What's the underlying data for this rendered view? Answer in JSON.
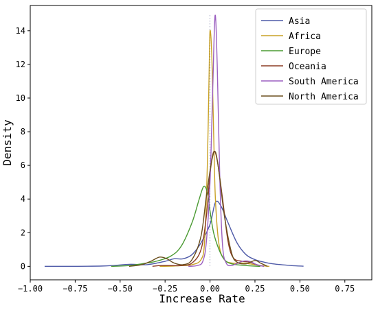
{
  "chart_data": {
    "type": "line",
    "title": "",
    "xlabel": "Increase Rate",
    "ylabel": "Density",
    "xlim": [
      -1.0,
      0.9
    ],
    "ylim": [
      -0.8,
      15.5
    ],
    "x_ticks": [
      -1.0,
      -0.75,
      -0.5,
      -0.25,
      0.0,
      0.25,
      0.5,
      0.75
    ],
    "x_tick_labels": [
      "−1.00",
      "−0.75",
      "−0.50",
      "−0.25",
      "0.00",
      "0.25",
      "0.50",
      "0.75"
    ],
    "y_ticks": [
      0,
      2,
      4,
      6,
      8,
      10,
      12,
      14
    ],
    "y_tick_labels": [
      "0",
      "2",
      "4",
      "6",
      "8",
      "10",
      "12",
      "14"
    ],
    "grid": false,
    "legend_position": "top-right",
    "reference_line": {
      "x": 0.0,
      "style": "dotted"
    },
    "series": [
      {
        "name": "Asia",
        "color": "#4f5ba8",
        "points": [
          [
            -0.92,
            0.0
          ],
          [
            -0.6,
            0.02
          ],
          [
            -0.45,
            0.12
          ],
          [
            -0.35,
            0.1
          ],
          [
            -0.25,
            0.3
          ],
          [
            -0.2,
            0.45
          ],
          [
            -0.15,
            0.45
          ],
          [
            -0.1,
            0.7
          ],
          [
            -0.05,
            1.4
          ],
          [
            0.0,
            2.5
          ],
          [
            0.03,
            3.8
          ],
          [
            0.06,
            3.6
          ],
          [
            0.1,
            2.6
          ],
          [
            0.15,
            1.4
          ],
          [
            0.2,
            0.7
          ],
          [
            0.25,
            0.4
          ],
          [
            0.3,
            0.25
          ],
          [
            0.35,
            0.15
          ],
          [
            0.45,
            0.05
          ],
          [
            0.52,
            0.01
          ]
        ]
      },
      {
        "name": "Africa",
        "color": "#c9a227",
        "points": [
          [
            -0.28,
            0.0
          ],
          [
            -0.2,
            0.02
          ],
          [
            -0.15,
            0.05
          ],
          [
            -0.1,
            0.1
          ],
          [
            -0.05,
            0.4
          ],
          [
            -0.03,
            1.5
          ],
          [
            -0.015,
            6.0
          ],
          [
            -0.005,
            11.5
          ],
          [
            0.0,
            14.0
          ],
          [
            0.01,
            12.5
          ],
          [
            0.02,
            8.0
          ],
          [
            0.03,
            4.0
          ],
          [
            0.05,
            1.3
          ],
          [
            0.08,
            0.4
          ],
          [
            0.12,
            0.2
          ],
          [
            0.18,
            0.2
          ],
          [
            0.22,
            0.15
          ],
          [
            0.28,
            0.05
          ],
          [
            0.33,
            0.0
          ]
        ]
      },
      {
        "name": "Europe",
        "color": "#4a9a32",
        "points": [
          [
            -0.55,
            0.0
          ],
          [
            -0.45,
            0.05
          ],
          [
            -0.38,
            0.15
          ],
          [
            -0.3,
            0.3
          ],
          [
            -0.22,
            0.6
          ],
          [
            -0.16,
            1.2
          ],
          [
            -0.1,
            2.6
          ],
          [
            -0.06,
            4.0
          ],
          [
            -0.035,
            4.75
          ],
          [
            -0.015,
            4.4
          ],
          [
            0.0,
            3.3
          ],
          [
            0.02,
            2.0
          ],
          [
            0.05,
            1.0
          ],
          [
            0.08,
            0.4
          ],
          [
            0.12,
            0.15
          ],
          [
            0.2,
            0.05
          ],
          [
            0.28,
            0.0
          ]
        ]
      },
      {
        "name": "Oceania",
        "color": "#8b3a22",
        "points": [
          [
            -0.32,
            0.0
          ],
          [
            -0.28,
            0.05
          ],
          [
            -0.22,
            0.05
          ],
          [
            -0.16,
            0.05
          ],
          [
            -0.1,
            0.2
          ],
          [
            -0.05,
            1.0
          ],
          [
            -0.02,
            3.0
          ],
          [
            0.0,
            5.5
          ],
          [
            0.02,
            6.8
          ],
          [
            0.04,
            6.3
          ],
          [
            0.07,
            4.0
          ],
          [
            0.1,
            1.5
          ],
          [
            0.13,
            0.5
          ],
          [
            0.18,
            0.3
          ],
          [
            0.22,
            0.25
          ],
          [
            0.26,
            0.1
          ],
          [
            0.3,
            0.0
          ]
        ]
      },
      {
        "name": "South America",
        "color": "#9b5fc0",
        "points": [
          [
            -0.12,
            0.0
          ],
          [
            -0.07,
            0.05
          ],
          [
            -0.04,
            0.3
          ],
          [
            -0.02,
            1.5
          ],
          [
            0.0,
            5.0
          ],
          [
            0.015,
            10.5
          ],
          [
            0.028,
            14.9
          ],
          [
            0.04,
            12.0
          ],
          [
            0.055,
            5.0
          ],
          [
            0.07,
            1.2
          ],
          [
            0.09,
            0.2
          ],
          [
            0.12,
            0.05
          ],
          [
            0.18,
            0.3
          ],
          [
            0.22,
            0.3
          ],
          [
            0.26,
            0.1
          ],
          [
            0.3,
            0.0
          ]
        ]
      },
      {
        "name": "North America",
        "color": "#6b4f1e",
        "points": [
          [
            -0.45,
            0.0
          ],
          [
            -0.38,
            0.1
          ],
          [
            -0.33,
            0.3
          ],
          [
            -0.28,
            0.55
          ],
          [
            -0.24,
            0.45
          ],
          [
            -0.2,
            0.2
          ],
          [
            -0.15,
            0.1
          ],
          [
            -0.1,
            0.4
          ],
          [
            -0.05,
            1.8
          ],
          [
            -0.02,
            4.2
          ],
          [
            0.01,
            6.3
          ],
          [
            0.03,
            6.8
          ],
          [
            0.05,
            5.6
          ],
          [
            0.08,
            3.0
          ],
          [
            0.12,
            0.8
          ],
          [
            0.15,
            0.25
          ],
          [
            0.2,
            0.15
          ],
          [
            0.25,
            0.35
          ],
          [
            0.28,
            0.2
          ],
          [
            0.32,
            0.0
          ]
        ]
      }
    ]
  }
}
